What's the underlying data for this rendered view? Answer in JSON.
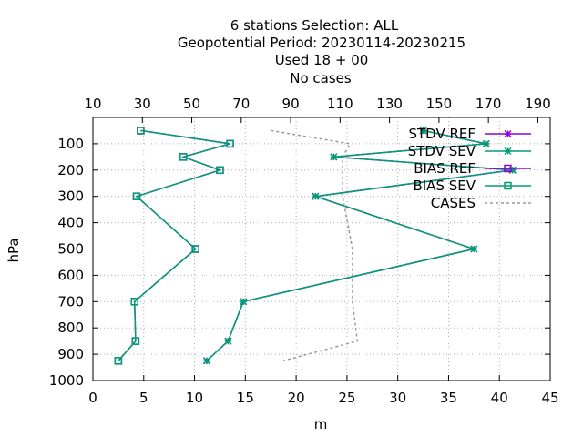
{
  "chart_data": {
    "type": "line",
    "title_lines": [
      "6 stations Selection: ALL",
      "Geopotential  Period: 20230114-20230215",
      "Used  18 + 00",
      "No cases"
    ],
    "xlabel": "m",
    "ylabel": "hPa",
    "xlim": [
      0,
      45
    ],
    "ylim": [
      1000,
      0
    ],
    "x_ticks": [
      0,
      5,
      10,
      15,
      20,
      25,
      30,
      35,
      40,
      45
    ],
    "y_ticks": [
      100,
      200,
      300,
      400,
      500,
      600,
      700,
      800,
      900,
      1000
    ],
    "x2lim": [
      10,
      195
    ],
    "x2_ticks": [
      10,
      30,
      50,
      70,
      90,
      110,
      130,
      150,
      170,
      190
    ],
    "grid": true,
    "legend_position": "top-right",
    "series": [
      {
        "name": "STDV REF",
        "color": "#9400d3",
        "marker": "star",
        "axis": "x1",
        "points": [
          [
            32.5,
            50
          ],
          [
            38.7,
            100
          ],
          [
            23.7,
            150
          ],
          [
            41.3,
            200
          ],
          [
            21.9,
            300
          ],
          [
            37.5,
            500
          ],
          [
            14.8,
            700
          ],
          [
            13.3,
            850
          ],
          [
            11.2,
            925
          ]
        ]
      },
      {
        "name": "STDV SEV",
        "color": "#009e73",
        "marker": "star",
        "axis": "x1",
        "points": [
          [
            32.5,
            50
          ],
          [
            38.7,
            100
          ],
          [
            23.7,
            150
          ],
          [
            41.3,
            200
          ],
          [
            21.9,
            300
          ],
          [
            37.5,
            500
          ],
          [
            14.8,
            700
          ],
          [
            13.3,
            850
          ],
          [
            11.2,
            925
          ]
        ]
      },
      {
        "name": "BIAS REF",
        "color": "#9400d3",
        "marker": "square",
        "axis": "x1",
        "points": [
          [
            4.7,
            50
          ],
          [
            13.5,
            100
          ],
          [
            8.9,
            150
          ],
          [
            12.5,
            200
          ],
          [
            4.3,
            300
          ],
          [
            10.1,
            500
          ],
          [
            4.1,
            700
          ],
          [
            4.2,
            850
          ],
          [
            2.5,
            925
          ]
        ]
      },
      {
        "name": "BIAS SEV",
        "color": "#009e73",
        "marker": "square",
        "axis": "x1",
        "points": [
          [
            4.7,
            50
          ],
          [
            13.5,
            100
          ],
          [
            8.9,
            150
          ],
          [
            12.5,
            200
          ],
          [
            4.3,
            300
          ],
          [
            10.1,
            500
          ],
          [
            4.1,
            700
          ],
          [
            4.2,
            850
          ],
          [
            2.5,
            925
          ]
        ]
      },
      {
        "name": "CASES",
        "color": "#999999",
        "marker": "none",
        "dashed": true,
        "axis": "x2",
        "points": [
          [
            82,
            50
          ],
          [
            114,
            100
          ],
          [
            111,
            150
          ],
          [
            111,
            200
          ],
          [
            111,
            300
          ],
          [
            113,
            400
          ],
          [
            115,
            500
          ],
          [
            115,
            700
          ],
          [
            117,
            850
          ],
          [
            87,
            925
          ]
        ]
      }
    ]
  }
}
